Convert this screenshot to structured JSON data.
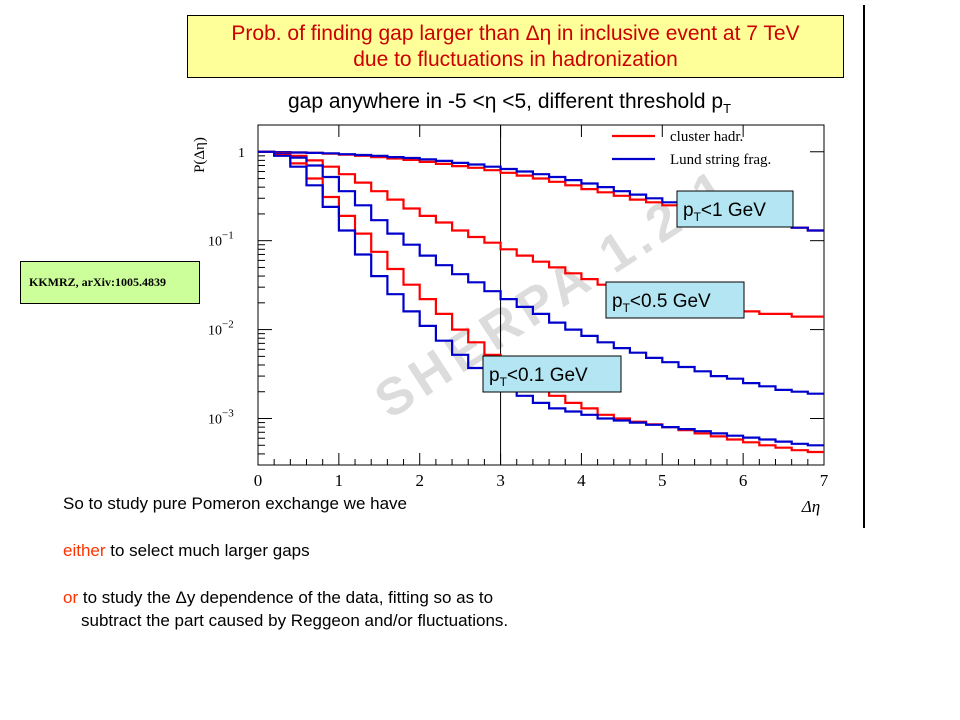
{
  "slide": {
    "title_line1": "Prob. of finding gap larger than Δη  in inclusive event at 7 TeV",
    "title_line2": "due to fluctuations in hadronization",
    "subtitle_main": "gap anywhere in -5 <η <5,  different threshold p",
    "subtitle_sub": "T",
    "reference": "KKMRZ,  arXiv:1005.4839",
    "bullet1": "So to study pure Pomeron exchange we have",
    "bullet2_kw": "either",
    "bullet2_rest": " to select much larger gaps",
    "bullet3_kw": "or",
    "bullet3_rest": " to study the Δy dependence of the data, fitting  so as to",
    "bullet3_line2": "subtract the part caused by Reggeon and/or fluctuations.",
    "watermark": "SHERPA 1.2.1"
  },
  "chart_data": {
    "type": "line",
    "xlabel": "Δη",
    "ylabel": "P(Δη)",
    "xlim": [
      0,
      7
    ],
    "ylim": [
      0.0003,
      2
    ],
    "yscale": "log",
    "x_ticks": [
      "0",
      "1",
      "2",
      "3",
      "4",
      "5",
      "6",
      "7"
    ],
    "y_ticks": [
      {
        "base": "1",
        "exp": ""
      },
      {
        "base": "10",
        "exp": "−1"
      },
      {
        "base": "10",
        "exp": "−2"
      },
      {
        "base": "10",
        "exp": "−3"
      }
    ],
    "y_tick_values": [
      1,
      0.1,
      0.01,
      0.001
    ],
    "vertical_marker_x": 3,
    "legend": [
      {
        "label": "cluster hadr.",
        "color": "#ff0000"
      },
      {
        "label": "Lund string frag.",
        "color": "#0000cc"
      }
    ],
    "x_bins": [
      0,
      0.2,
      0.4,
      0.6,
      0.8,
      1.0,
      1.2,
      1.4,
      1.6,
      1.8,
      2.0,
      2.2,
      2.4,
      2.6,
      2.8,
      3.0,
      3.2,
      3.4,
      3.6,
      3.8,
      4.0,
      4.2,
      4.4,
      4.6,
      4.8,
      5.0,
      5.2,
      5.4,
      5.6,
      5.8,
      6.0,
      6.2,
      6.4,
      6.6,
      6.8,
      7.0
    ],
    "series": [
      {
        "name": "cluster hadr.",
        "group": "p_T<1 GeV",
        "color": "#ff0000",
        "values": [
          1,
          0.99,
          0.98,
          0.97,
          0.95,
          0.93,
          0.9,
          0.87,
          0.84,
          0.81,
          0.77,
          0.73,
          0.69,
          0.66,
          0.62,
          0.58,
          0.54,
          0.5,
          0.46,
          0.42,
          0.38,
          0.35,
          0.32,
          0.29,
          0.27,
          0.25,
          0.23,
          0.21,
          0.2,
          0.18,
          0.17,
          0.16,
          0.15,
          0.14,
          0.13
        ]
      },
      {
        "name": "Lund string frag.",
        "group": "p_T<1 GeV",
        "color": "#0000cc",
        "values": [
          1,
          0.99,
          0.98,
          0.97,
          0.96,
          0.94,
          0.92,
          0.9,
          0.87,
          0.85,
          0.82,
          0.79,
          0.75,
          0.72,
          0.68,
          0.64,
          0.6,
          0.56,
          0.52,
          0.48,
          0.44,
          0.4,
          0.36,
          0.33,
          0.3,
          0.27,
          0.25,
          0.22,
          0.2,
          0.19,
          0.17,
          0.16,
          0.15,
          0.14,
          0.13
        ]
      },
      {
        "name": "cluster hadr.",
        "group": "p_T<0.5 GeV",
        "color": "#ff0000",
        "values": [
          1,
          0.96,
          0.9,
          0.8,
          0.68,
          0.56,
          0.45,
          0.36,
          0.29,
          0.23,
          0.19,
          0.16,
          0.13,
          0.11,
          0.095,
          0.08,
          0.068,
          0.058,
          0.05,
          0.043,
          0.037,
          0.032,
          0.028,
          0.025,
          0.022,
          0.02,
          0.019,
          0.018,
          0.017,
          0.016,
          0.016,
          0.015,
          0.015,
          0.014,
          0.014
        ]
      },
      {
        "name": "Lund string frag.",
        "group": "p_T<0.5 GeV",
        "color": "#0000cc",
        "values": [
          1,
          0.95,
          0.86,
          0.7,
          0.52,
          0.36,
          0.25,
          0.17,
          0.12,
          0.09,
          0.068,
          0.053,
          0.042,
          0.034,
          0.027,
          0.022,
          0.018,
          0.015,
          0.012,
          0.01,
          0.0085,
          0.0072,
          0.0062,
          0.0055,
          0.0048,
          0.0043,
          0.0038,
          0.0034,
          0.003,
          0.0028,
          0.0025,
          0.0023,
          0.0021,
          0.002,
          0.0019
        ]
      },
      {
        "name": "cluster hadr.",
        "group": "p_T<0.1 GeV",
        "color": "#ff0000",
        "values": [
          1,
          0.92,
          0.74,
          0.5,
          0.31,
          0.19,
          0.12,
          0.075,
          0.048,
          0.032,
          0.022,
          0.015,
          0.01,
          0.0072,
          0.0052,
          0.0038,
          0.0029,
          0.0022,
          0.0018,
          0.0015,
          0.0013,
          0.0011,
          0.001,
          0.00092,
          0.00086,
          0.0008,
          0.00074,
          0.00068,
          0.00063,
          0.00058,
          0.00054,
          0.0005,
          0.00047,
          0.00044,
          0.00042
        ]
      },
      {
        "name": "Lund string frag.",
        "group": "p_T<0.1 GeV",
        "color": "#0000cc",
        "values": [
          1,
          0.9,
          0.68,
          0.42,
          0.24,
          0.13,
          0.07,
          0.04,
          0.025,
          0.016,
          0.011,
          0.0075,
          0.0052,
          0.0037,
          0.0028,
          0.0022,
          0.0018,
          0.0015,
          0.0013,
          0.0012,
          0.0011,
          0.001,
          0.00095,
          0.0009,
          0.00085,
          0.0008,
          0.00076,
          0.00072,
          0.00068,
          0.00064,
          0.00061,
          0.00058,
          0.00055,
          0.00052,
          0.0005
        ]
      }
    ],
    "annotations": [
      {
        "text": "p",
        "sub": "T",
        "rest": "<1 GeV"
      },
      {
        "text": "p",
        "sub": "T",
        "rest": "<0.5 GeV"
      },
      {
        "text": "p",
        "sub": "T",
        "rest": "<0.1 GeV"
      }
    ]
  }
}
